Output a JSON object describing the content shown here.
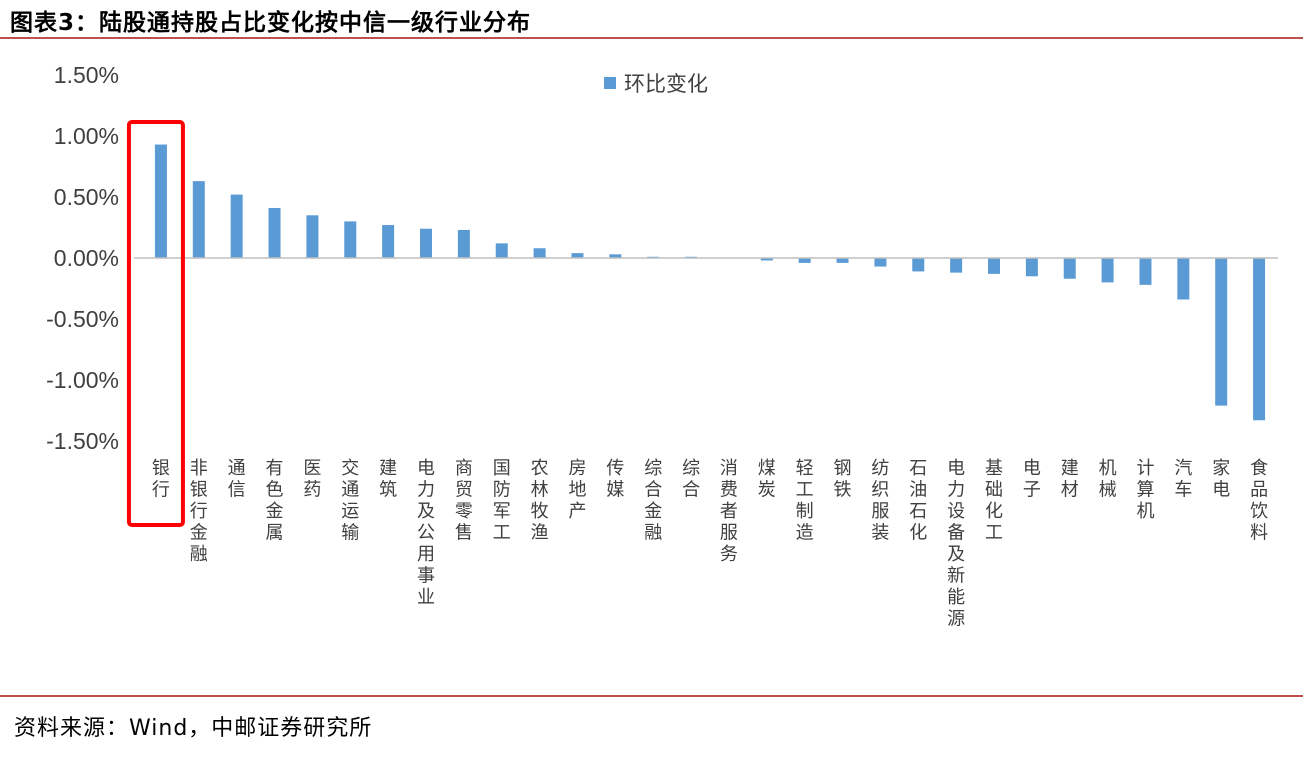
{
  "header": {
    "title": "图表3：陆股通持股占比变化按中信一级行业分布"
  },
  "footer": {
    "source": "资料来源：Wind，中邮证券研究所"
  },
  "colors": {
    "bar": "#5b9bd5",
    "rule": "#c0504d",
    "highlight": "#ff0000"
  },
  "chart_data": {
    "type": "bar",
    "title": "",
    "xlabel": "",
    "ylabel": "",
    "ylim": [
      -1.5,
      1.5
    ],
    "y_ticks": [
      1.5,
      1.0,
      0.5,
      0.0,
      -0.5,
      -1.0,
      -1.5
    ],
    "y_tick_labels": [
      "1.50%",
      "1.00%",
      "0.50%",
      "0.00%",
      "-0.50%",
      "-1.00%",
      "-1.50%"
    ],
    "grid": false,
    "legend": {
      "position": "top-center",
      "entries": [
        "环比变化"
      ]
    },
    "highlight_category": "银行",
    "categories": [
      "银行",
      "非银行金融",
      "通信",
      "有色金属",
      "医药",
      "交通运输",
      "建筑",
      "电力及公用事业",
      "商贸零售",
      "国防军工",
      "农林牧渔",
      "房地产",
      "传媒",
      "综合金融",
      "综合",
      "消费者服务",
      "煤炭",
      "轻工制造",
      "钢铁",
      "纺织服装",
      "石油石化",
      "电力设备及新能源",
      "基础化工",
      "电子",
      "建材",
      "机械",
      "计算机",
      "汽车",
      "家电",
      "食品饮料"
    ],
    "series": [
      {
        "name": "环比变化",
        "values": [
          0.93,
          0.63,
          0.52,
          0.41,
          0.35,
          0.3,
          0.27,
          0.24,
          0.23,
          0.12,
          0.08,
          0.04,
          0.03,
          0.01,
          0.01,
          0.0,
          -0.02,
          -0.04,
          -0.04,
          -0.07,
          -0.11,
          -0.12,
          -0.13,
          -0.15,
          -0.17,
          -0.2,
          -0.22,
          -0.34,
          -1.21,
          -1.33
        ]
      }
    ]
  }
}
